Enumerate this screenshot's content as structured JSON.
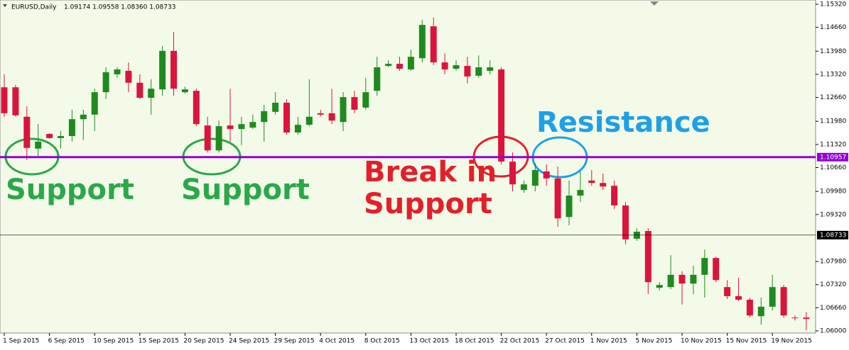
{
  "chart_data": {
    "type": "candlestick",
    "title": "EURUSD,Daily",
    "subtitle": "1.09174 1.09558 1.08360 1.08733",
    "categories": [
      "1 Sep 2015",
      null,
      null,
      null,
      "6 Sep 2015",
      null,
      null,
      null,
      "10 Sep 2015",
      null,
      null,
      null,
      "15 Sep 2015",
      null,
      null,
      null,
      "20 Sep 2015",
      null,
      null,
      null,
      "24 Sep 2015",
      null,
      null,
      null,
      "29 Sep 2015",
      null,
      null,
      null,
      "4 Oct 2015",
      null,
      null,
      null,
      "8 Oct 2015",
      null,
      null,
      null,
      "13 Oct 2015",
      null,
      null,
      null,
      "18 Oct 2015",
      null,
      null,
      null,
      "22 Oct 2015",
      null,
      null,
      null,
      "27 Oct 2015",
      null,
      null,
      null,
      "1 Nov 2015",
      null,
      null,
      null,
      "5 Nov 2015",
      null,
      null,
      null,
      "10 Nov 2015",
      null,
      null,
      null,
      "15 Nov 2015",
      null,
      null,
      null,
      "19 Nov 2015",
      null,
      null,
      null
    ],
    "open": [
      1.1295,
      1.1295,
      1.1211,
      1.112,
      1.1162,
      1.115,
      1.1156,
      1.1204,
      1.1217,
      1.1281,
      1.1332,
      1.1342,
      1.1308,
      1.1265,
      1.1289,
      1.1399,
      1.1281,
      1.1285,
      1.1186,
      1.1115,
      1.1186,
      1.1176,
      1.118,
      1.1196,
      1.1225,
      1.1251,
      1.1166,
      1.1188,
      1.1221,
      1.1221,
      1.1196,
      1.1267,
      1.1237,
      1.1285,
      1.1356,
      1.1362,
      1.1346,
      1.1378,
      1.1469,
      1.1366,
      1.1348,
      1.1356,
      1.1328,
      1.1342,
      1.1346,
      1.1083,
      1.1002,
      1.1014,
      1.1055,
      1.1035,
      1.0925,
      1.0986,
      1.1029,
      1.1022,
      1.1014,
      1.0958,
      1.0863,
      1.0885,
      1.0723,
      1.0725,
      1.076,
      1.0735,
      1.076,
      1.0808,
      1.0725,
      1.0699,
      1.0689,
      1.0642,
      1.0669,
      1.0725,
      1.0638,
      1.0638
    ],
    "high": [
      1.1332,
      1.1302,
      1.1241,
      1.119,
      1.1164,
      1.117,
      1.1231,
      1.1231,
      1.1291,
      1.1352,
      1.1352,
      1.1366,
      1.1332,
      1.1318,
      1.1413,
      1.1453,
      1.1297,
      1.1291,
      1.1211,
      1.12,
      1.1291,
      1.1211,
      1.1217,
      1.1245,
      1.1281,
      1.1261,
      1.1211,
      1.1318,
      1.1231,
      1.1291,
      1.1281,
      1.1285,
      1.1322,
      1.1382,
      1.1372,
      1.1382,
      1.1403,
      1.1488,
      1.1494,
      1.1392,
      1.1372,
      1.1382,
      1.1386,
      1.1372,
      1.1352,
      1.1109,
      1.1029,
      1.1079,
      1.1075,
      1.1069,
      1.1029,
      1.1055,
      1.1059,
      1.1049,
      1.1029,
      1.0968,
      1.0893,
      1.0893,
      1.0739,
      1.0816,
      1.077,
      1.0786,
      1.0832,
      1.0812,
      1.0745,
      1.0752,
      1.0695,
      1.0695,
      1.076,
      1.0731,
      1.0644,
      1.0654
    ],
    "low": [
      1.1211,
      1.1211,
      1.1087,
      1.1099,
      1.1148,
      1.112,
      1.114,
      1.1144,
      1.117,
      1.1261,
      1.1322,
      1.1281,
      1.1261,
      1.1217,
      1.1271,
      1.1271,
      1.1277,
      1.1184,
      1.1109,
      1.1109,
      1.114,
      1.113,
      1.1176,
      1.114,
      1.1217,
      1.116,
      1.116,
      1.1184,
      1.1211,
      1.119,
      1.117,
      1.1221,
      1.1231,
      1.1271,
      1.1352,
      1.1342,
      1.1342,
      1.1366,
      1.1358,
      1.1332,
      1.1342,
      1.1306,
      1.1322,
      1.1332,
      1.1075,
      1.0998,
      1.0994,
      1.0998,
      1.1014,
      1.0897,
      1.0901,
      1.0968,
      1.1014,
      1.1002,
      1.0948,
      1.0847,
      1.0857,
      1.0705,
      1.0715,
      1.0719,
      1.0675,
      1.0705,
      1.0695,
      1.0739,
      1.0691,
      1.0685,
      1.0638,
      1.0618,
      1.0658,
      1.0638,
      1.063,
      1.0602
    ],
    "close": [
      1.1221,
      1.1215,
      1.1122,
      1.114,
      1.115,
      1.1156,
      1.1204,
      1.1217,
      1.1281,
      1.1338,
      1.1346,
      1.1308,
      1.1265,
      1.1291,
      1.1399,
      1.1291,
      1.1289,
      1.119,
      1.1115,
      1.1184,
      1.1176,
      1.119,
      1.1196,
      1.1227,
      1.1251,
      1.1166,
      1.1188,
      1.1211,
      1.1217,
      1.12,
      1.1267,
      1.1231,
      1.1281,
      1.1352,
      1.1362,
      1.1348,
      1.1382,
      1.1473,
      1.1366,
      1.1346,
      1.1358,
      1.1326,
      1.1352,
      1.1352,
      1.1083,
      1.1018,
      1.1018,
      1.1059,
      1.1035,
      1.0921,
      1.0986,
      1.1002,
      1.1022,
      1.1012,
      1.0958,
      1.0861,
      1.0883,
      1.0739,
      1.0731,
      1.076,
      1.0735,
      1.076,
      1.0808,
      1.0745,
      1.0699,
      1.0689,
      1.0644,
      1.0669,
      1.0725,
      1.0644,
      1.0636,
      1.0634
    ],
    "up_color": "#1f8a1f",
    "down_color": "#dc143c",
    "ylim": [
      1.0594,
      1.1538
    ],
    "yticks": [
      {
        "value": 1.1532,
        "label": "1.15320"
      },
      {
        "value": 1.1466,
        "label": "1.14660"
      },
      {
        "value": 1.1398,
        "label": "1.13980"
      },
      {
        "value": 1.1332,
        "label": "1.13320"
      },
      {
        "value": 1.1266,
        "label": "1.12660"
      },
      {
        "value": 1.1198,
        "label": "1.11980"
      },
      {
        "value": 1.1132,
        "label": "1.11320"
      },
      {
        "value": 1.1066,
        "label": "1.10660"
      },
      {
        "value": 1.0998,
        "label": "1.09980"
      },
      {
        "value": 1.0932,
        "label": "1.09320"
      },
      {
        "value": 1.0798,
        "label": "1.07980"
      },
      {
        "value": 1.0732,
        "label": "1.07320"
      },
      {
        "value": 1.0666,
        "label": "1.06660"
      },
      {
        "value": 1.06,
        "label": "1.06000"
      }
    ],
    "hlines": [
      {
        "value": 1.10957,
        "color": "#9400d3"
      },
      {
        "value": 1.08733,
        "color": "#000000"
      }
    ],
    "annotations": [
      {
        "text": "Support",
        "color": "#2aa84a"
      },
      {
        "text": "Support",
        "color": "#2aa84a"
      },
      {
        "text": "Break in",
        "color": "#e3202a"
      },
      {
        "text": "Support",
        "color": "#e3202a"
      },
      {
        "text": "Resistance",
        "color": "#1ea0e6"
      }
    ]
  }
}
